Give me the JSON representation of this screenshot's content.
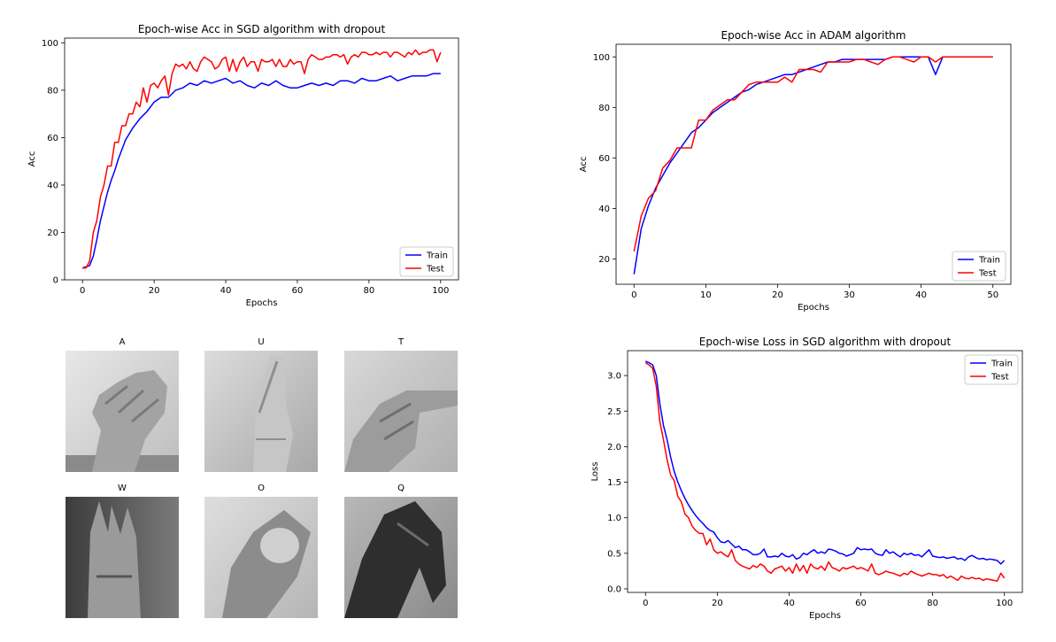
{
  "chart_data": [
    {
      "type": "line",
      "title": "Epoch-wise Acc in SGD algorithm with dropout",
      "xlabel": "Epochs",
      "ylabel": "Acc",
      "xlim": [
        -5,
        105
      ],
      "ylim": [
        0,
        102
      ],
      "xticks": [
        "0",
        "20",
        "40",
        "60",
        "80",
        "100"
      ],
      "yticks": [
        "0",
        "20",
        "40",
        "60",
        "80",
        "100"
      ],
      "grid": false,
      "legend": "lower-right",
      "series": [
        {
          "name": "Train",
          "color": "#0000ff",
          "x": [
            0,
            2,
            3,
            4,
            5,
            6,
            7,
            8,
            9,
            10,
            12,
            14,
            16,
            18,
            20,
            22,
            24,
            26,
            28,
            30,
            32,
            34,
            36,
            38,
            40,
            42,
            44,
            46,
            48,
            50,
            52,
            54,
            56,
            58,
            60,
            62,
            64,
            66,
            68,
            70,
            72,
            74,
            76,
            78,
            80,
            82,
            84,
            86,
            88,
            90,
            92,
            94,
            96,
            98,
            100
          ],
          "y": [
            5,
            6,
            10,
            17,
            25,
            31,
            37,
            42,
            46,
            51,
            59,
            64,
            68,
            71,
            75,
            77,
            77,
            80,
            81,
            83,
            82,
            84,
            83,
            84,
            85,
            83,
            84,
            82,
            81,
            83,
            82,
            84,
            82,
            81,
            81,
            82,
            83,
            82,
            83,
            82,
            84,
            84,
            83,
            85,
            84,
            84,
            85,
            86,
            84,
            85,
            86,
            86,
            86,
            87,
            87
          ]
        },
        {
          "name": "Test",
          "color": "#ff0000",
          "x": [
            0,
            1,
            2,
            3,
            4,
            5,
            6,
            7,
            8,
            9,
            10,
            11,
            12,
            13,
            14,
            15,
            16,
            17,
            18,
            19,
            20,
            21,
            22,
            23,
            24,
            25,
            26,
            27,
            28,
            29,
            30,
            31,
            32,
            33,
            34,
            35,
            36,
            37,
            38,
            39,
            40,
            41,
            42,
            43,
            44,
            45,
            46,
            47,
            48,
            49,
            50,
            51,
            52,
            53,
            54,
            55,
            56,
            57,
            58,
            59,
            60,
            61,
            62,
            63,
            64,
            65,
            66,
            67,
            68,
            69,
            70,
            71,
            72,
            73,
            74,
            75,
            76,
            77,
            78,
            79,
            80,
            81,
            82,
            83,
            84,
            85,
            86,
            87,
            88,
            89,
            90,
            91,
            92,
            93,
            94,
            95,
            96,
            97,
            98,
            99,
            100
          ],
          "y": [
            5,
            5,
            8,
            20,
            25,
            35,
            40,
            48,
            48,
            58,
            58,
            65,
            65,
            70,
            70,
            75,
            73,
            81,
            75,
            82,
            83,
            81,
            84,
            86,
            78,
            87,
            91,
            90,
            91,
            89,
            92,
            89,
            88,
            92,
            94,
            93,
            92,
            89,
            90,
            93,
            94,
            88,
            93,
            88,
            92,
            94,
            90,
            92,
            92,
            88,
            93,
            92,
            92,
            93,
            90,
            93,
            90,
            90,
            93,
            91,
            92,
            92,
            87,
            93,
            95,
            94,
            93,
            93,
            94,
            94,
            95,
            95,
            94,
            95,
            91,
            94,
            95,
            94,
            96,
            96,
            95,
            95,
            96,
            95,
            96,
            96,
            94,
            96,
            96,
            95,
            94,
            96,
            95,
            97,
            95,
            96,
            96,
            97,
            97,
            92,
            96
          ]
        }
      ]
    },
    {
      "type": "line",
      "title": "Epoch-wise Acc in ADAM algorithm",
      "xlabel": "Epochs",
      "ylabel": "Acc",
      "xlim": [
        -2.5,
        52.5
      ],
      "ylim": [
        10,
        105
      ],
      "xticks": [
        "0",
        "10",
        "20",
        "30",
        "40",
        "50"
      ],
      "yticks": [
        "20",
        "40",
        "60",
        "80",
        "100"
      ],
      "grid": false,
      "legend": "lower-right",
      "series": [
        {
          "name": "Train",
          "color": "#0000ff",
          "x": [
            0,
            1,
            2,
            3,
            4,
            5,
            6,
            7,
            8,
            9,
            10,
            11,
            12,
            13,
            14,
            15,
            16,
            17,
            18,
            19,
            20,
            21,
            22,
            23,
            24,
            25,
            26,
            27,
            28,
            29,
            30,
            31,
            32,
            33,
            34,
            35,
            36,
            37,
            38,
            39,
            40,
            41,
            42,
            43,
            44,
            45,
            46,
            47,
            48,
            49,
            50
          ],
          "y": [
            14,
            32,
            41,
            48,
            53,
            58,
            62,
            66,
            70,
            72,
            75,
            78,
            80,
            82,
            84,
            86,
            87,
            89,
            90,
            91,
            92,
            93,
            93,
            94,
            95,
            96,
            97,
            98,
            98,
            99,
            99,
            99,
            99,
            99,
            99,
            99,
            100,
            100,
            100,
            100,
            100,
            100,
            93,
            100,
            100,
            100,
            100,
            100,
            100,
            100,
            100
          ]
        },
        {
          "name": "Test",
          "color": "#ff0000",
          "x": [
            0,
            1,
            2,
            3,
            4,
            5,
            6,
            7,
            8,
            9,
            10,
            11,
            12,
            13,
            14,
            15,
            16,
            17,
            18,
            19,
            20,
            21,
            22,
            23,
            24,
            25,
            26,
            27,
            28,
            29,
            30,
            31,
            32,
            33,
            34,
            35,
            36,
            37,
            38,
            39,
            40,
            41,
            42,
            43,
            44,
            45,
            46,
            47,
            48,
            49,
            50
          ],
          "y": [
            23,
            37,
            44,
            47,
            56,
            59,
            64,
            64,
            64,
            75,
            75,
            79,
            81,
            83,
            83,
            86,
            89,
            90,
            90,
            90,
            90,
            92,
            90,
            95,
            95,
            95,
            94,
            98,
            98,
            98,
            98,
            99,
            99,
            98,
            97,
            99,
            100,
            100,
            99,
            98,
            100,
            100,
            98,
            100,
            100,
            100,
            100,
            100,
            100,
            100,
            100
          ]
        }
      ]
    },
    {
      "type": "line",
      "title": "Epoch-wise Loss in SGD algorithm with dropout",
      "xlabel": "Epochs",
      "ylabel": "Loss",
      "xlim": [
        -5,
        105
      ],
      "ylim": [
        -0.05,
        3.35
      ],
      "xticks": [
        "0",
        "20",
        "40",
        "60",
        "80",
        "100"
      ],
      "yticks": [
        "0.0",
        "0.5",
        "1.0",
        "1.5",
        "2.0",
        "2.5",
        "3.0"
      ],
      "grid": false,
      "legend": "upper-right",
      "series": [
        {
          "name": "Train",
          "color": "#0000ff",
          "x": [
            0,
            1,
            2,
            3,
            4,
            5,
            6,
            7,
            8,
            9,
            10,
            11,
            12,
            13,
            14,
            15,
            16,
            17,
            18,
            19,
            20,
            21,
            22,
            23,
            24,
            25,
            26,
            27,
            28,
            29,
            30,
            31,
            32,
            33,
            34,
            35,
            36,
            37,
            38,
            39,
            40,
            41,
            42,
            43,
            44,
            45,
            46,
            47,
            48,
            49,
            50,
            51,
            52,
            53,
            54,
            55,
            56,
            57,
            58,
            59,
            60,
            61,
            62,
            63,
            64,
            65,
            66,
            67,
            68,
            69,
            70,
            71,
            72,
            73,
            74,
            75,
            76,
            77,
            78,
            79,
            80,
            81,
            82,
            83,
            84,
            85,
            86,
            87,
            88,
            89,
            90,
            91,
            92,
            93,
            94,
            95,
            96,
            97,
            98,
            99,
            100
          ],
          "y": [
            3.2,
            3.18,
            3.15,
            3.0,
            2.6,
            2.3,
            2.1,
            1.85,
            1.65,
            1.5,
            1.38,
            1.27,
            1.18,
            1.1,
            1.03,
            0.97,
            0.92,
            0.86,
            0.82,
            0.8,
            0.72,
            0.66,
            0.65,
            0.68,
            0.63,
            0.58,
            0.6,
            0.55,
            0.55,
            0.52,
            0.48,
            0.48,
            0.5,
            0.56,
            0.45,
            0.45,
            0.46,
            0.45,
            0.5,
            0.46,
            0.45,
            0.48,
            0.42,
            0.44,
            0.5,
            0.48,
            0.52,
            0.55,
            0.5,
            0.52,
            0.5,
            0.56,
            0.55,
            0.53,
            0.5,
            0.49,
            0.46,
            0.48,
            0.5,
            0.58,
            0.55,
            0.56,
            0.55,
            0.56,
            0.5,
            0.48,
            0.47,
            0.55,
            0.5,
            0.52,
            0.48,
            0.45,
            0.5,
            0.48,
            0.5,
            0.47,
            0.48,
            0.45,
            0.5,
            0.55,
            0.46,
            0.45,
            0.44,
            0.45,
            0.43,
            0.44,
            0.45,
            0.42,
            0.43,
            0.4,
            0.45,
            0.47,
            0.44,
            0.42,
            0.43,
            0.41,
            0.42,
            0.41,
            0.4,
            0.35,
            0.4
          ]
        },
        {
          "name": "Test",
          "color": "#ff0000",
          "x": [
            0,
            1,
            2,
            3,
            4,
            5,
            6,
            7,
            8,
            9,
            10,
            11,
            12,
            13,
            14,
            15,
            16,
            17,
            18,
            19,
            20,
            21,
            22,
            23,
            24,
            25,
            26,
            27,
            28,
            29,
            30,
            31,
            32,
            33,
            34,
            35,
            36,
            37,
            38,
            39,
            40,
            41,
            42,
            43,
            44,
            45,
            46,
            47,
            48,
            49,
            50,
            51,
            52,
            53,
            54,
            55,
            56,
            57,
            58,
            59,
            60,
            61,
            62,
            63,
            64,
            65,
            66,
            67,
            68,
            69,
            70,
            71,
            72,
            73,
            74,
            75,
            76,
            77,
            78,
            79,
            80,
            81,
            82,
            83,
            84,
            85,
            86,
            87,
            88,
            89,
            90,
            91,
            92,
            93,
            94,
            95,
            96,
            97,
            98,
            99,
            100
          ],
          "y": [
            3.18,
            3.15,
            3.1,
            2.85,
            2.35,
            2.1,
            1.82,
            1.6,
            1.52,
            1.3,
            1.22,
            1.05,
            1.0,
            0.88,
            0.82,
            0.78,
            0.78,
            0.62,
            0.7,
            0.55,
            0.5,
            0.52,
            0.48,
            0.45,
            0.55,
            0.4,
            0.35,
            0.32,
            0.3,
            0.28,
            0.33,
            0.3,
            0.35,
            0.32,
            0.25,
            0.22,
            0.28,
            0.3,
            0.32,
            0.25,
            0.3,
            0.22,
            0.35,
            0.25,
            0.33,
            0.22,
            0.35,
            0.3,
            0.28,
            0.32,
            0.26,
            0.38,
            0.3,
            0.28,
            0.25,
            0.3,
            0.28,
            0.3,
            0.32,
            0.28,
            0.3,
            0.28,
            0.25,
            0.35,
            0.22,
            0.2,
            0.22,
            0.25,
            0.23,
            0.22,
            0.2,
            0.18,
            0.22,
            0.2,
            0.25,
            0.22,
            0.2,
            0.18,
            0.2,
            0.22,
            0.2,
            0.2,
            0.18,
            0.2,
            0.15,
            0.18,
            0.15,
            0.12,
            0.18,
            0.15,
            0.14,
            0.16,
            0.14,
            0.15,
            0.12,
            0.14,
            0.13,
            0.12,
            0.11,
            0.22,
            0.15
          ]
        }
      ]
    }
  ],
  "hand_images": [
    {
      "label": "A",
      "tone": "#c8c8c8"
    },
    {
      "label": "U",
      "tone": "#b8b8b8"
    },
    {
      "label": "T",
      "tone": "#c0c0c0"
    },
    {
      "label": "W",
      "tone": "#707070"
    },
    {
      "label": "O",
      "tone": "#b0b0b0"
    },
    {
      "label": "Q",
      "tone": "#9a9a9a"
    }
  ]
}
